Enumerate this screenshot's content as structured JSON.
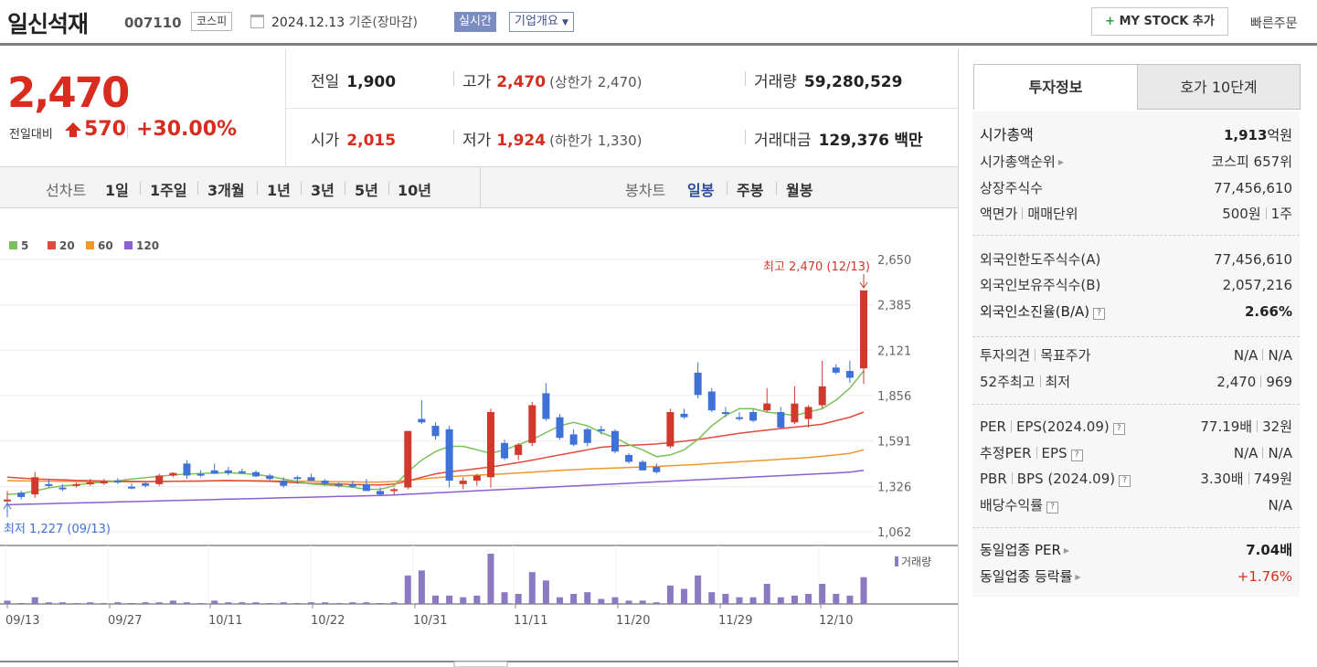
{
  "header": {
    "stock_name": "일신석재",
    "stock_code": "007110",
    "market": "코스피",
    "date": "2024.12.13",
    "date_suffix": "기준(장마감)",
    "realtime_label": "실시간",
    "company_label": "기업개요",
    "mystock_label": "MY STOCK 추가",
    "quick_order_label": "빠른주문"
  },
  "price": {
    "current": "2,470",
    "change_label": "전일대비",
    "change": "570",
    "change_pct": "+30.00%",
    "prev_close_label": "전일",
    "prev_close": "1,900",
    "high_label": "고가",
    "high": "2,470",
    "upper_limit_label": "(상한가",
    "upper_limit": "2,470)",
    "volume_label": "거래량",
    "volume": "59,280,529",
    "open_label": "시가",
    "open": "2,015",
    "low_label": "저가",
    "low": "1,924",
    "lower_limit_label": "(하한가",
    "lower_limit": "1,330)",
    "turnover_label": "거래대금",
    "turnover": "129,376",
    "turnover_unit": "백만"
  },
  "period_bar": {
    "line_chart_label": "선차트",
    "line_periods": [
      "1일",
      "1주일",
      "3개월",
      "1년",
      "3년",
      "5년",
      "10년"
    ],
    "candle_chart_label": "봉차트",
    "candle_periods": [
      "일봉",
      "주봉",
      "월봉"
    ],
    "selected_candle": "일봉"
  },
  "colors": {
    "up": "#d0392b",
    "down": "#3f72d6",
    "ma5": "#7cc25a",
    "ma20": "#e24a3b",
    "ma60": "#f0962d",
    "ma120": "#8c5fd2",
    "volume": "#8b79c2"
  },
  "chart_data": {
    "type": "candlestick",
    "legend": [
      {
        "name": "5",
        "color": "#7cc25a"
      },
      {
        "name": "20",
        "color": "#e24a3b"
      },
      {
        "name": "60",
        "color": "#f0962d"
      },
      {
        "name": "120",
        "color": "#8c5fd2"
      }
    ],
    "y_ticks": [
      "2,650",
      "2,385",
      "2,121",
      "1,856",
      "1,591",
      "1,326",
      "1,062"
    ],
    "ylim": [
      1062,
      2650
    ],
    "x_ticks": [
      "09/13",
      "09/27",
      "10/11",
      "10/22",
      "10/31",
      "11/11",
      "11/20",
      "11/29",
      "12/10"
    ],
    "high_annotation": "최고 2,470 (12/13)",
    "low_annotation": "최저 1,227 (09/13)",
    "volume_label": "거래량",
    "candles": [
      [
        1250,
        1300,
        1227,
        1250
      ],
      [
        1290,
        1300,
        1250,
        1265
      ],
      [
        1280,
        1410,
        1260,
        1380
      ],
      [
        1340,
        1370,
        1320,
        1330
      ],
      [
        1320,
        1340,
        1300,
        1310
      ],
      [
        1330,
        1350,
        1320,
        1340
      ],
      [
        1340,
        1370,
        1330,
        1350
      ],
      [
        1345,
        1370,
        1335,
        1355
      ],
      [
        1360,
        1375,
        1340,
        1350
      ],
      [
        1325,
        1345,
        1310,
        1315
      ],
      [
        1345,
        1355,
        1320,
        1330
      ],
      [
        1340,
        1400,
        1330,
        1390
      ],
      [
        1390,
        1410,
        1380,
        1405
      ],
      [
        1460,
        1480,
        1370,
        1390
      ],
      [
        1400,
        1420,
        1380,
        1390
      ],
      [
        1420,
        1460,
        1400,
        1400
      ],
      [
        1420,
        1440,
        1390,
        1405
      ],
      [
        1415,
        1430,
        1400,
        1405
      ],
      [
        1410,
        1420,
        1380,
        1385
      ],
      [
        1390,
        1400,
        1360,
        1370
      ],
      [
        1360,
        1380,
        1320,
        1330
      ],
      [
        1380,
        1390,
        1340,
        1370
      ],
      [
        1380,
        1400,
        1360,
        1360
      ],
      [
        1360,
        1370,
        1330,
        1345
      ],
      [
        1340,
        1350,
        1320,
        1335
      ],
      [
        1340,
        1360,
        1320,
        1325
      ],
      [
        1340,
        1370,
        1300,
        1300
      ],
      [
        1300,
        1320,
        1270,
        1280
      ],
      [
        1300,
        1320,
        1280,
        1310
      ],
      [
        1320,
        1650,
        1310,
        1650
      ],
      [
        1720,
        1830,
        1690,
        1700
      ],
      [
        1680,
        1700,
        1600,
        1620
      ],
      [
        1660,
        1680,
        1320,
        1360
      ],
      [
        1340,
        1380,
        1310,
        1360
      ],
      [
        1360,
        1400,
        1330,
        1390
      ],
      [
        1380,
        1780,
        1320,
        1760
      ],
      [
        1580,
        1600,
        1480,
        1490
      ],
      [
        1510,
        1580,
        1480,
        1570
      ],
      [
        1580,
        1820,
        1560,
        1800
      ],
      [
        1870,
        1930,
        1710,
        1720
      ],
      [
        1730,
        1750,
        1600,
        1610
      ],
      [
        1630,
        1660,
        1560,
        1570
      ],
      [
        1660,
        1670,
        1560,
        1580
      ],
      [
        1660,
        1680,
        1630,
        1650
      ],
      [
        1650,
        1660,
        1520,
        1530
      ],
      [
        1510,
        1520,
        1460,
        1470
      ],
      [
        1470,
        1480,
        1420,
        1420
      ],
      [
        1440,
        1460,
        1400,
        1410
      ],
      [
        1560,
        1780,
        1550,
        1760
      ],
      [
        1750,
        1780,
        1720,
        1730
      ],
      [
        1990,
        2050,
        1840,
        1860
      ],
      [
        1880,
        1900,
        1760,
        1770
      ],
      [
        1760,
        1790,
        1730,
        1750
      ],
      [
        1730,
        1760,
        1710,
        1720
      ],
      [
        1760,
        1780,
        1700,
        1710
      ],
      [
        1770,
        1900,
        1760,
        1810
      ],
      [
        1760,
        1790,
        1660,
        1670
      ],
      [
        1700,
        1910,
        1690,
        1810
      ],
      [
        1720,
        1800,
        1670,
        1790
      ],
      [
        1800,
        2060,
        1780,
        1910
      ],
      [
        2020,
        2040,
        1980,
        1990
      ],
      [
        2000,
        2060,
        1930,
        1960
      ],
      [
        2015,
        2470,
        1924,
        2470
      ]
    ],
    "ma5": [
      1280,
      1285,
      1300,
      1318,
      1330,
      1335,
      1345,
      1352,
      1360,
      1370,
      1378,
      1385,
      1394,
      1398,
      1402,
      1405,
      1406,
      1402,
      1396,
      1385,
      1370,
      1355,
      1340,
      1335,
      1330,
      1322,
      1310,
      1310,
      1330,
      1412,
      1480,
      1530,
      1560,
      1560,
      1540,
      1520,
      1540,
      1570,
      1600,
      1640,
      1680,
      1700,
      1680,
      1640,
      1610,
      1570,
      1540,
      1500,
      1510,
      1540,
      1600,
      1680,
      1740,
      1780,
      1780,
      1760,
      1750,
      1740,
      1760,
      1780,
      1830,
      1900,
      2000
    ],
    "ma20": [
      1380,
      1375,
      1370,
      1368,
      1365,
      1362,
      1360,
      1358,
      1357,
      1356,
      1355,
      1355,
      1356,
      1357,
      1358,
      1360,
      1361,
      1360,
      1358,
      1356,
      1352,
      1348,
      1344,
      1342,
      1340,
      1338,
      1336,
      1335,
      1340,
      1358,
      1380,
      1400,
      1412,
      1420,
      1430,
      1440,
      1452,
      1466,
      1480,
      1495,
      1510,
      1525,
      1540,
      1555,
      1562,
      1566,
      1570,
      1574,
      1582,
      1590,
      1600,
      1612,
      1624,
      1636,
      1646,
      1655,
      1664,
      1672,
      1680,
      1690,
      1710,
      1730,
      1760
    ],
    "ma60": [
      1360,
      1359,
      1358,
      1357,
      1356,
      1355,
      1354,
      1354,
      1354,
      1354,
      1354,
      1355,
      1356,
      1357,
      1358,
      1359,
      1360,
      1360,
      1360,
      1359,
      1358,
      1357,
      1356,
      1355,
      1354,
      1353,
      1352,
      1352,
      1355,
      1362,
      1370,
      1377,
      1383,
      1388,
      1392,
      1396,
      1400,
      1405,
      1410,
      1415,
      1420,
      1424,
      1428,
      1431,
      1434,
      1437,
      1440,
      1443,
      1447,
      1451,
      1455,
      1460,
      1465,
      1470,
      1475,
      1480,
      1485,
      1490,
      1495,
      1502,
      1510,
      1520,
      1540
    ],
    "ma120": [
      1220,
      1222,
      1224,
      1226,
      1228,
      1230,
      1232,
      1234,
      1236,
      1238,
      1240,
      1242,
      1244,
      1246,
      1248,
      1250,
      1252,
      1254,
      1256,
      1258,
      1260,
      1262,
      1264,
      1266,
      1268,
      1270,
      1272,
      1274,
      1277,
      1281,
      1285,
      1289,
      1293,
      1297,
      1301,
      1305,
      1309,
      1313,
      1317,
      1321,
      1325,
      1329,
      1333,
      1337,
      1341,
      1345,
      1349,
      1353,
      1357,
      1361,
      1365,
      1369,
      1373,
      1377,
      1381,
      1385,
      1389,
      1393,
      1397,
      1401,
      1405,
      1410,
      1420
    ],
    "volume": [
      2,
      0,
      4,
      1,
      1,
      0,
      1,
      0,
      1,
      0,
      1,
      1,
      2,
      1,
      0,
      2,
      1,
      1,
      1,
      0,
      1,
      0,
      1,
      1,
      0,
      1,
      1,
      0,
      1,
      17,
      20,
      5,
      5,
      4,
      5,
      30,
      7,
      6,
      19,
      14,
      4,
      6,
      7,
      3,
      4,
      2,
      2,
      1,
      11,
      9,
      17,
      7,
      6,
      4,
      4,
      12,
      4,
      5,
      6,
      12,
      6,
      5,
      16
    ]
  },
  "invest_tabs": [
    "투자정보",
    "호가 10단계"
  ],
  "invest_info": {
    "market_cap_label": "시가총액",
    "market_cap": "1,913",
    "market_cap_unit": "억원",
    "market_cap_rank_label": "시가총액순위",
    "market_cap_rank": "코스피 657위",
    "listed_shares_label": "상장주식수",
    "listed_shares": "77,456,610",
    "par_label": "액면가",
    "lot_label": "매매단위",
    "par_value": "500원",
    "lot_value": "1주",
    "foreign_limit_label": "외국인한도주식수(A)",
    "foreign_limit": "77,456,610",
    "foreign_hold_label": "외국인보유주식수(B)",
    "foreign_hold": "2,057,216",
    "foreign_ratio_label": "외국인소진율(B/A)",
    "foreign_ratio": "2.66%",
    "opinion_label": "투자의견",
    "target_label": "목표주가",
    "opinion": "N/A",
    "target": "N/A",
    "high52_label": "52주최고",
    "low52_label": "최저",
    "high52": "2,470",
    "low52": "969",
    "per_label": "PER",
    "eps_label": "EPS(2024.09)",
    "per": "77.19배",
    "eps": "32원",
    "est_per_label": "추정PER",
    "est_eps_label": "EPS",
    "est_per": "N/A",
    "est_eps": "N/A",
    "pbr_label": "PBR",
    "bps_label": "BPS (2024.09)",
    "pbr": "3.30배",
    "bps": "749원",
    "dividend_label": "배당수익률",
    "dividend": "N/A",
    "sector_per_label": "동일업종 PER",
    "sector_per": "7.04배",
    "sector_change_label": "동일업종 등락률",
    "sector_change": "+1.76%"
  }
}
